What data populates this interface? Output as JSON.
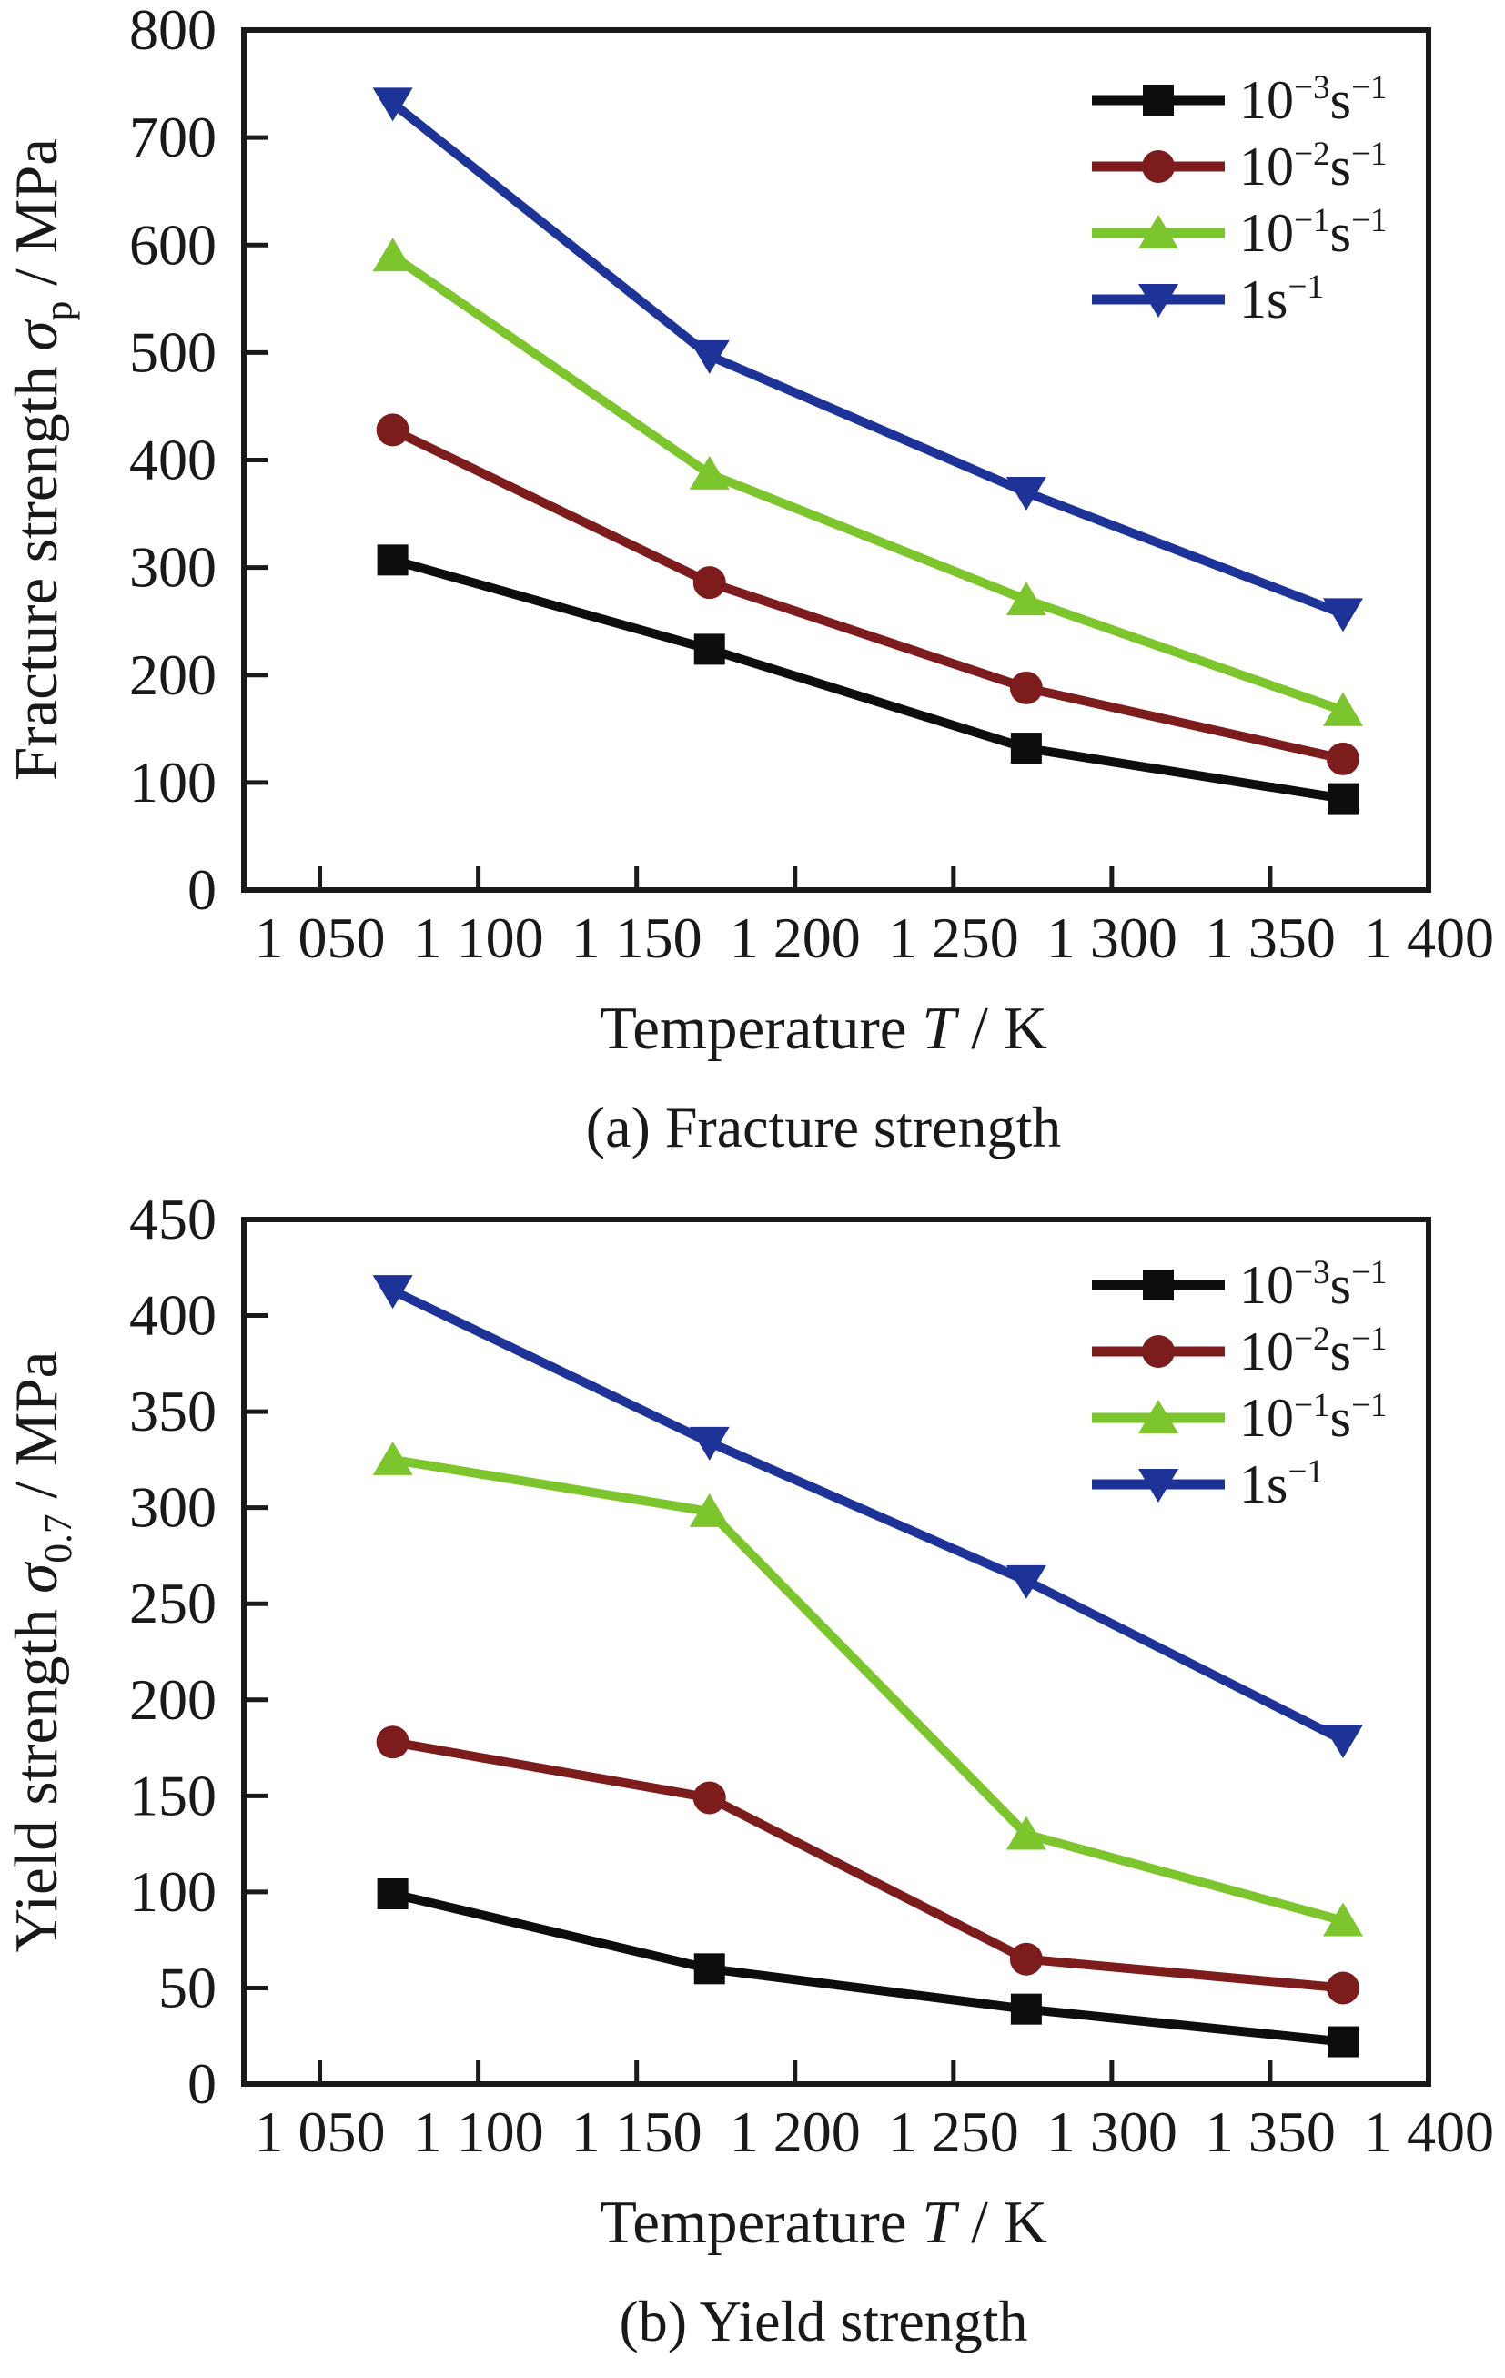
{
  "figure": {
    "background": "#ffffff",
    "frame_color": "#1a1a1a"
  },
  "chart_data": [
    {
      "type": "line",
      "caption": "(a) Fracture strength",
      "xlabel": {
        "prefix": "Temperature ",
        "symbol": "T",
        "suffix": " / K"
      },
      "ylabel": {
        "prefix": "Fracture strength ",
        "symbol": "σ",
        "sub": "p",
        "suffix": " / MPa"
      },
      "x": [
        1073,
        1173,
        1273,
        1373
      ],
      "xlim": [
        1026,
        1400
      ],
      "xticks": [
        1050,
        1100,
        1150,
        1200,
        1250,
        1300,
        1350,
        1400
      ],
      "xtick_labels": [
        "1 050",
        "1 100",
        "1 150",
        "1 200",
        "1 250",
        "1 300",
        "1 350",
        "1 400"
      ],
      "ylim": [
        0,
        800
      ],
      "ytick_step": 100,
      "grid": false,
      "legend_position": "top-right",
      "series": [
        {
          "name": "10^-3 s^-1",
          "label_parts": [
            {
              "t": "10"
            },
            {
              "t": "−3",
              "sup": true
            },
            {
              "t": "s"
            },
            {
              "t": "−1",
              "sup": true
            }
          ],
          "color": "#0d0d0d",
          "marker": "square",
          "values": [
            307,
            224,
            132,
            85
          ]
        },
        {
          "name": "10^-2 s^-1",
          "label_parts": [
            {
              "t": "10"
            },
            {
              "t": "−2",
              "sup": true
            },
            {
              "t": "s"
            },
            {
              "t": "−1",
              "sup": true
            }
          ],
          "color": "#7c1c1c",
          "marker": "circle",
          "values": [
            428,
            286,
            188,
            122
          ]
        },
        {
          "name": "10^-1 s^-1",
          "label_parts": [
            {
              "t": "10"
            },
            {
              "t": "−1",
              "sup": true
            },
            {
              "t": "s"
            },
            {
              "t": "−1",
              "sup": true
            }
          ],
          "color": "#7dc52d",
          "marker": "triangle-up",
          "values": [
            590,
            387,
            270,
            167
          ]
        },
        {
          "name": "1 s^-1",
          "label_parts": [
            {
              "t": "1"
            },
            {
              "t": "s"
            },
            {
              "t": "−1",
              "sup": true
            }
          ],
          "color": "#1e3398",
          "marker": "triangle-down",
          "values": [
            732,
            497,
            370,
            257
          ]
        }
      ]
    },
    {
      "type": "line",
      "caption": "(b) Yield strength",
      "xlabel": {
        "prefix": "Temperature ",
        "symbol": "T",
        "suffix": " / K"
      },
      "ylabel": {
        "prefix": "Yield strength ",
        "symbol": "σ",
        "sub": "0.7",
        "suffix": " / MPa"
      },
      "x": [
        1073,
        1173,
        1273,
        1373
      ],
      "xlim": [
        1026,
        1400
      ],
      "xticks": [
        1050,
        1100,
        1150,
        1200,
        1250,
        1300,
        1350,
        1400
      ],
      "xtick_labels": [
        "1 050",
        "1 100",
        "1 150",
        "1 200",
        "1 250",
        "1 300",
        "1 350",
        "1 400"
      ],
      "ylim": [
        0,
        450
      ],
      "ytick_step": 50,
      "grid": false,
      "legend_position": "top-right",
      "series": [
        {
          "name": "10^-3 s^-1",
          "label_parts": [
            {
              "t": "10"
            },
            {
              "t": "−3",
              "sup": true
            },
            {
              "t": "s"
            },
            {
              "t": "−1",
              "sup": true
            }
          ],
          "color": "#0d0d0d",
          "marker": "square",
          "values": [
            99,
            60,
            39,
            22
          ]
        },
        {
          "name": "10^-2 s^-1",
          "label_parts": [
            {
              "t": "10"
            },
            {
              "t": "−2",
              "sup": true
            },
            {
              "t": "s"
            },
            {
              "t": "−1",
              "sup": true
            }
          ],
          "color": "#7c1c1c",
          "marker": "circle",
          "values": [
            178,
            149,
            65,
            50
          ]
        },
        {
          "name": "10^-1 s^-1",
          "label_parts": [
            {
              "t": "10"
            },
            {
              "t": "−1",
              "sup": true
            },
            {
              "t": "s"
            },
            {
              "t": "−1",
              "sup": true
            }
          ],
          "color": "#7dc52d",
          "marker": "triangle-up",
          "values": [
            325,
            298,
            130,
            85
          ]
        },
        {
          "name": "1 s^-1",
          "label_parts": [
            {
              "t": "1"
            },
            {
              "t": "s"
            },
            {
              "t": "−1",
              "sup": true
            }
          ],
          "color": "#1e3398",
          "marker": "triangle-down",
          "values": [
            413,
            334,
            262,
            179
          ]
        }
      ]
    }
  ]
}
